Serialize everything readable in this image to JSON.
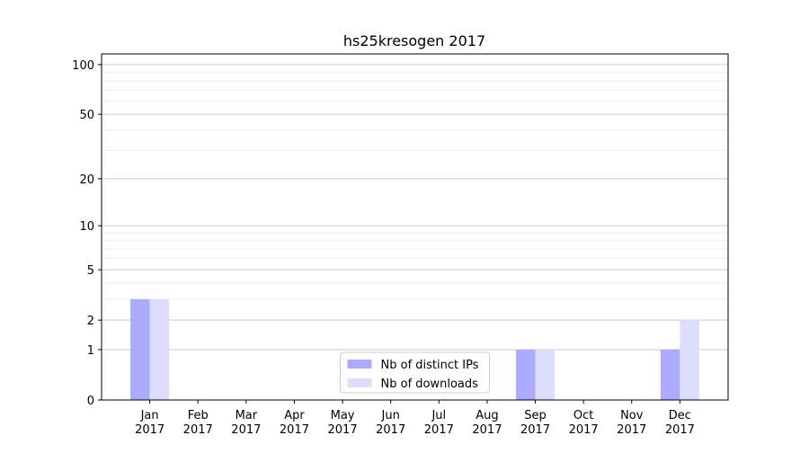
{
  "chart_data": {
    "type": "bar",
    "title": "hs25kresogen 2017",
    "scale": "log1p",
    "categories": [
      "Jan\n2017",
      "Feb\n2017",
      "Mar\n2017",
      "Apr\n2017",
      "May\n2017",
      "Jun\n2017",
      "Jul\n2017",
      "Aug\n2017",
      "Sep\n2017",
      "Oct\n2017",
      "Nov\n2017",
      "Dec\n2017"
    ],
    "series": [
      {
        "name": "Nb of distinct IPs",
        "color": "#aaaaff",
        "values": [
          3,
          0,
          0,
          0,
          0,
          0,
          0,
          0,
          1,
          0,
          0,
          1
        ]
      },
      {
        "name": "Nb of downloads",
        "color": "#ddddff",
        "values": [
          3,
          0,
          0,
          0,
          0,
          0,
          0,
          0,
          1,
          0,
          0,
          2
        ]
      }
    ],
    "ylim": [
      0,
      116
    ],
    "yticks": [
      0,
      1,
      2,
      5,
      10,
      20,
      50,
      100
    ],
    "yminorticks": [
      3,
      4,
      6,
      7,
      8,
      9,
      30,
      40,
      60,
      70,
      80,
      90
    ],
    "grid": true,
    "legend": "lower center"
  }
}
